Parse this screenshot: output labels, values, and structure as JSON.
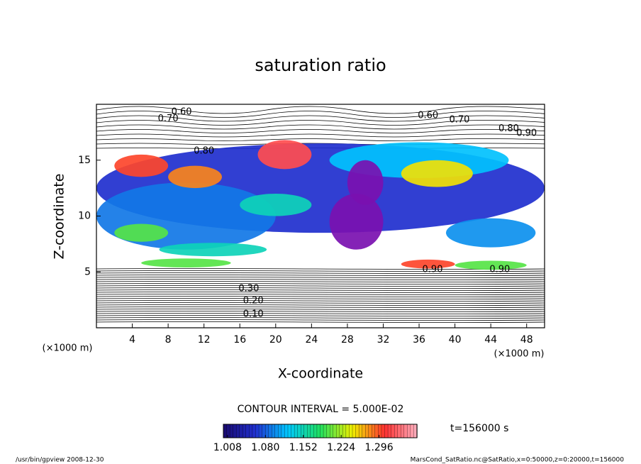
{
  "chart_data": {
    "type": "contour",
    "title": "saturation ratio",
    "x_label": "X-coordinate",
    "y_label": "Z-coordinate",
    "x_unit": "(×1000 m)",
    "y_unit": "(×1000 m)",
    "xlim": [
      0,
      50
    ],
    "xticks": [
      4,
      8,
      12,
      16,
      20,
      24,
      28,
      32,
      36,
      40,
      44,
      48
    ],
    "ylim": [
      0,
      20
    ],
    "yticks": [
      5,
      10,
      15
    ],
    "colormap": [
      "#1a0a6e",
      "#2030d0",
      "#00c8ff",
      "#20e060",
      "#f0f000",
      "#ff3030",
      "#ffb0c0"
    ],
    "under_color": "#7a10b0",
    "clim": [
      1.0,
      1.368
    ],
    "colorbar_ticks": [
      1.008,
      {
        "value": 1.08,
        "label": "1.080"
      },
      1.152,
      1.224,
      1.296
    ],
    "shaded_regions": [
      {
        "x": 25,
        "y": 12.5,
        "rx": 25,
        "ry": 4,
        "value": 1.06
      },
      {
        "x": 10,
        "y": 10,
        "rx": 10,
        "ry": 3,
        "value": 1.09
      },
      {
        "x": 36,
        "y": 15,
        "rx": 10,
        "ry": 1.6,
        "value": 1.12
      },
      {
        "x": 44,
        "y": 8.5,
        "rx": 5,
        "ry": 1.3,
        "value": 1.1
      },
      {
        "x": 20,
        "y": 11,
        "rx": 4,
        "ry": 1,
        "value": 1.15
      },
      {
        "x": 29,
        "y": 9.5,
        "rx": 3,
        "ry": 2.5,
        "value": 0.98
      },
      {
        "x": 30,
        "y": 13,
        "rx": 2,
        "ry": 2,
        "value": 0.98
      },
      {
        "x": 5,
        "y": 14.5,
        "rx": 3,
        "ry": 1,
        "value": 1.3
      },
      {
        "x": 11,
        "y": 13.5,
        "rx": 3,
        "ry": 1,
        "value": 1.28
      },
      {
        "x": 21,
        "y": 15.5,
        "rx": 3,
        "ry": 1.3,
        "value": 1.32
      },
      {
        "x": 38,
        "y": 13.8,
        "rx": 4,
        "ry": 1.2,
        "value": 1.25
      },
      {
        "x": 5,
        "y": 8.5,
        "rx": 3,
        "ry": 0.8,
        "value": 1.2
      },
      {
        "x": 13,
        "y": 7,
        "rx": 6,
        "ry": 0.6,
        "value": 1.15
      },
      {
        "x": 10,
        "y": 5.8,
        "rx": 5,
        "ry": 0.4,
        "value": 1.2
      },
      {
        "x": 37,
        "y": 5.7,
        "rx": 3,
        "ry": 0.4,
        "value": 1.3
      },
      {
        "x": 44,
        "y": 5.6,
        "rx": 4,
        "ry": 0.4,
        "value": 1.2
      }
    ],
    "contour_labels": [
      {
        "text": "0.60",
        "x": 9.5,
        "y": 19.3
      },
      {
        "text": "0.70",
        "x": 8,
        "y": 18.7
      },
      {
        "text": "0.80",
        "x": 12,
        "y": 15.8
      },
      {
        "text": "0.60",
        "x": 37,
        "y": 19
      },
      {
        "text": "0.70",
        "x": 40.5,
        "y": 18.6
      },
      {
        "text": "0.80",
        "x": 46,
        "y": 17.8
      },
      {
        "text": "0.90",
        "x": 48,
        "y": 17.4
      },
      {
        "text": "0.30",
        "x": 17,
        "y": 3.5
      },
      {
        "text": "0.20",
        "x": 17.5,
        "y": 2.4
      },
      {
        "text": "0.10",
        "x": 17.5,
        "y": 1.2
      },
      {
        "text": "0.90",
        "x": 37.5,
        "y": 5.2
      },
      {
        "text": "0.90",
        "x": 45,
        "y": 5.2
      }
    ],
    "contour_interval": "CONTOUR INTERVAL = 5.000E-02",
    "time_label": "t=156000 s",
    "footer_left": "/usr/bin/gpview   2008-12-30",
    "footer_right": "MarsCond_SatRatio.nc@SatRatio,x=0:50000,z=0:20000,t=156000"
  }
}
